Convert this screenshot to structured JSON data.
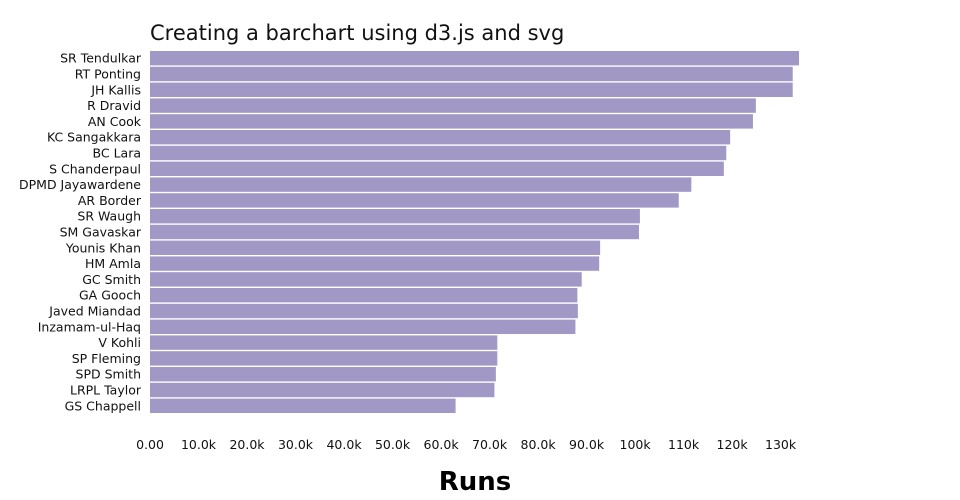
{
  "chart_data": {
    "type": "bar",
    "orientation": "horizontal",
    "title": "Creating a barchart using d3.js and svg",
    "xlabel": "Runs",
    "ylabel": "",
    "xlim": [
      0,
      134000
    ],
    "xticks": [
      {
        "value": 0,
        "label": "0.00"
      },
      {
        "value": 10000,
        "label": "10.0k"
      },
      {
        "value": 20000,
        "label": "20.0k"
      },
      {
        "value": 30000,
        "label": "30.0k"
      },
      {
        "value": 40000,
        "label": "40.0k"
      },
      {
        "value": 50000,
        "label": "50.0k"
      },
      {
        "value": 60000,
        "label": "60.0k"
      },
      {
        "value": 70000,
        "label": "70.0k"
      },
      {
        "value": 80000,
        "label": "80.0k"
      },
      {
        "value": 90000,
        "label": "90.0k"
      },
      {
        "value": 100000,
        "label": "100k"
      },
      {
        "value": 110000,
        "label": "110k"
      },
      {
        "value": 120000,
        "label": "120k"
      },
      {
        "value": 130000,
        "label": "130k"
      }
    ],
    "grid": false,
    "legend": "none",
    "bar_color": "#a298c6",
    "categories": [
      "SR Tendulkar",
      "RT Ponting",
      "JH Kallis",
      "R Dravid",
      "AN Cook",
      "KC Sangakkara",
      "BC Lara",
      "S Chanderpaul",
      "DPMD Jayawardene",
      "AR Border",
      "SR Waugh",
      "SM Gavaskar",
      "Younis Khan",
      "HM Amla",
      "GC Smith",
      "GA Gooch",
      "Javed Miandad",
      "Inzamam-ul-Haq",
      "V Kohli",
      "SP Fleming",
      "SPD Smith",
      "LRPL Taylor",
      "GS Chappell"
    ],
    "values": [
      133800,
      132500,
      132500,
      124900,
      124300,
      119600,
      118800,
      118300,
      111600,
      109000,
      101000,
      100800,
      92800,
      92600,
      89000,
      88100,
      88200,
      87700,
      71600,
      71600,
      71300,
      71000,
      63000
    ]
  }
}
